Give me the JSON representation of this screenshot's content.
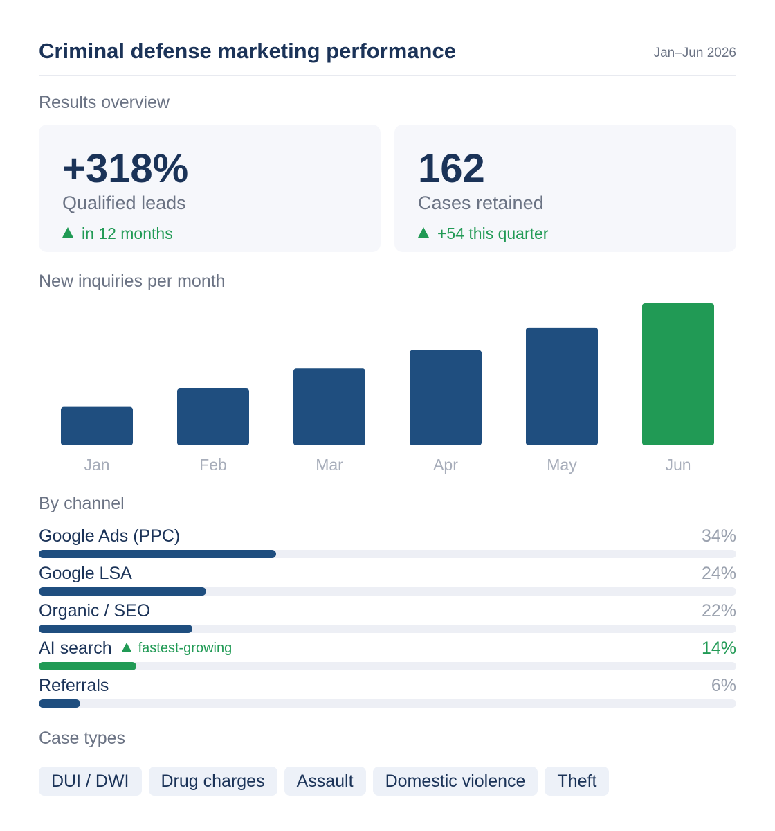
{
  "header": {
    "title": "Criminal defense marketing performance",
    "date_range": "Jan–Jun 2026"
  },
  "overview": {
    "label": "Results overview",
    "cards": [
      {
        "value": "+318%",
        "label": "Qualified leads",
        "trend": "in 12 months",
        "trend_icon": "arrow-up-icon"
      },
      {
        "value": "162",
        "label": "Cases retained",
        "trend": "+54 this quarter",
        "trend_icon": "arrow-up-icon"
      }
    ]
  },
  "inquiries": {
    "label": "New inquiries per month"
  },
  "chart_data": {
    "type": "bar",
    "categories": [
      "Jan",
      "Feb",
      "Mar",
      "Apr",
      "May",
      "Jun"
    ],
    "values": [
      27,
      40,
      54,
      67,
      83,
      100
    ],
    "highlight_index": 5,
    "colors": {
      "default": "#1f4e7f",
      "highlight": "#219a55"
    },
    "ylim": [
      0,
      100
    ],
    "grid": false,
    "legend": "none",
    "title": "",
    "xlabel": "",
    "ylabel": ""
  },
  "channels": {
    "label": "By channel",
    "items": [
      {
        "name": "Google Ads (PPC)",
        "percent_label": "34%",
        "percent": 34,
        "highlight": false,
        "tag": ""
      },
      {
        "name": "Google LSA",
        "percent_label": "24%",
        "percent": 24,
        "highlight": false,
        "tag": ""
      },
      {
        "name": "Organic / SEO",
        "percent_label": "22%",
        "percent": 22,
        "highlight": false,
        "tag": ""
      },
      {
        "name": "AI search",
        "percent_label": "14%",
        "percent": 14,
        "highlight": true,
        "tag": "fastest-growing"
      },
      {
        "name": "Referrals",
        "percent_label": "6%",
        "percent": 6,
        "highlight": false,
        "tag": ""
      }
    ]
  },
  "case_types": {
    "label": "Case types",
    "chips": [
      "DUI / DWI",
      "Drug charges",
      "Assault",
      "Domestic violence",
      "Theft"
    ]
  },
  "colors": {
    "navy": "#1b3358",
    "bar": "#1f4e7f",
    "accent_green": "#219a55",
    "muted": "#6b7384",
    "card_bg": "#f6f7fb",
    "chip_bg": "#edf1f8"
  }
}
